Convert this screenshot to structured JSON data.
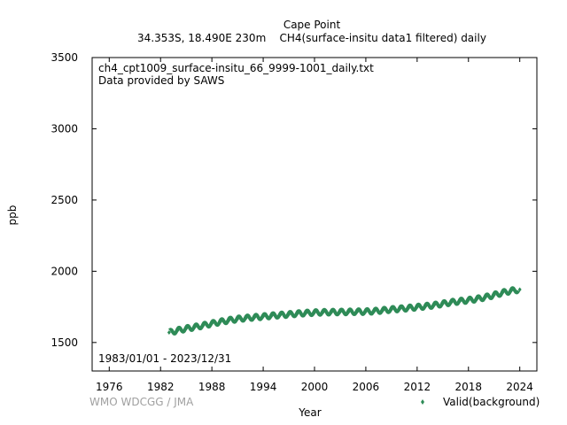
{
  "chart_data": {
    "type": "line",
    "title": "Cape Point",
    "subtitle": "34.353S, 18.490E 230m    CH4(surface-insitu data1 filtered) daily",
    "annotations": [
      "ch4_cpt1009_surface-insitu_66_9999-1001_daily.txt",
      "Data provided by SAWS"
    ],
    "date_range": "1983/01/01 - 2023/12/31",
    "credit": "WMO WDCGG / JMA",
    "xlabel": "Year",
    "ylabel": "ppb",
    "xlim": [
      1974,
      2026
    ],
    "ylim": [
      1300,
      3500
    ],
    "x_ticks": [
      1976,
      1982,
      1988,
      1994,
      2000,
      2006,
      2012,
      2018,
      2024
    ],
    "y_ticks": [
      1500,
      2000,
      2500,
      3000,
      3500
    ],
    "grid": false,
    "legend_position": "bottom-right",
    "colors": {
      "series": "#2e8b57",
      "credit": "#a0a0a0",
      "axis": "#000000"
    },
    "series": [
      {
        "name": "Valid(background)",
        "marker": "diamond",
        "seasonal_amplitude": 18,
        "x": [
          1983,
          1984,
          1985,
          1986,
          1987,
          1988,
          1989,
          1990,
          1991,
          1992,
          1993,
          1994,
          1995,
          1996,
          1997,
          1998,
          1999,
          2000,
          2001,
          2002,
          2003,
          2004,
          2005,
          2006,
          2007,
          2008,
          2009,
          2010,
          2011,
          2012,
          2013,
          2014,
          2015,
          2016,
          2017,
          2018,
          2019,
          2020,
          2021,
          2022,
          2023,
          2024
        ],
        "y": [
          1570,
          1585,
          1598,
          1608,
          1620,
          1633,
          1645,
          1656,
          1665,
          1672,
          1677,
          1682,
          1688,
          1693,
          1697,
          1703,
          1707,
          1710,
          1712,
          1713,
          1714,
          1715,
          1716,
          1717,
          1720,
          1726,
          1732,
          1737,
          1742,
          1748,
          1755,
          1762,
          1772,
          1782,
          1790,
          1797,
          1806,
          1818,
          1833,
          1850,
          1863,
          1872
        ]
      }
    ]
  }
}
